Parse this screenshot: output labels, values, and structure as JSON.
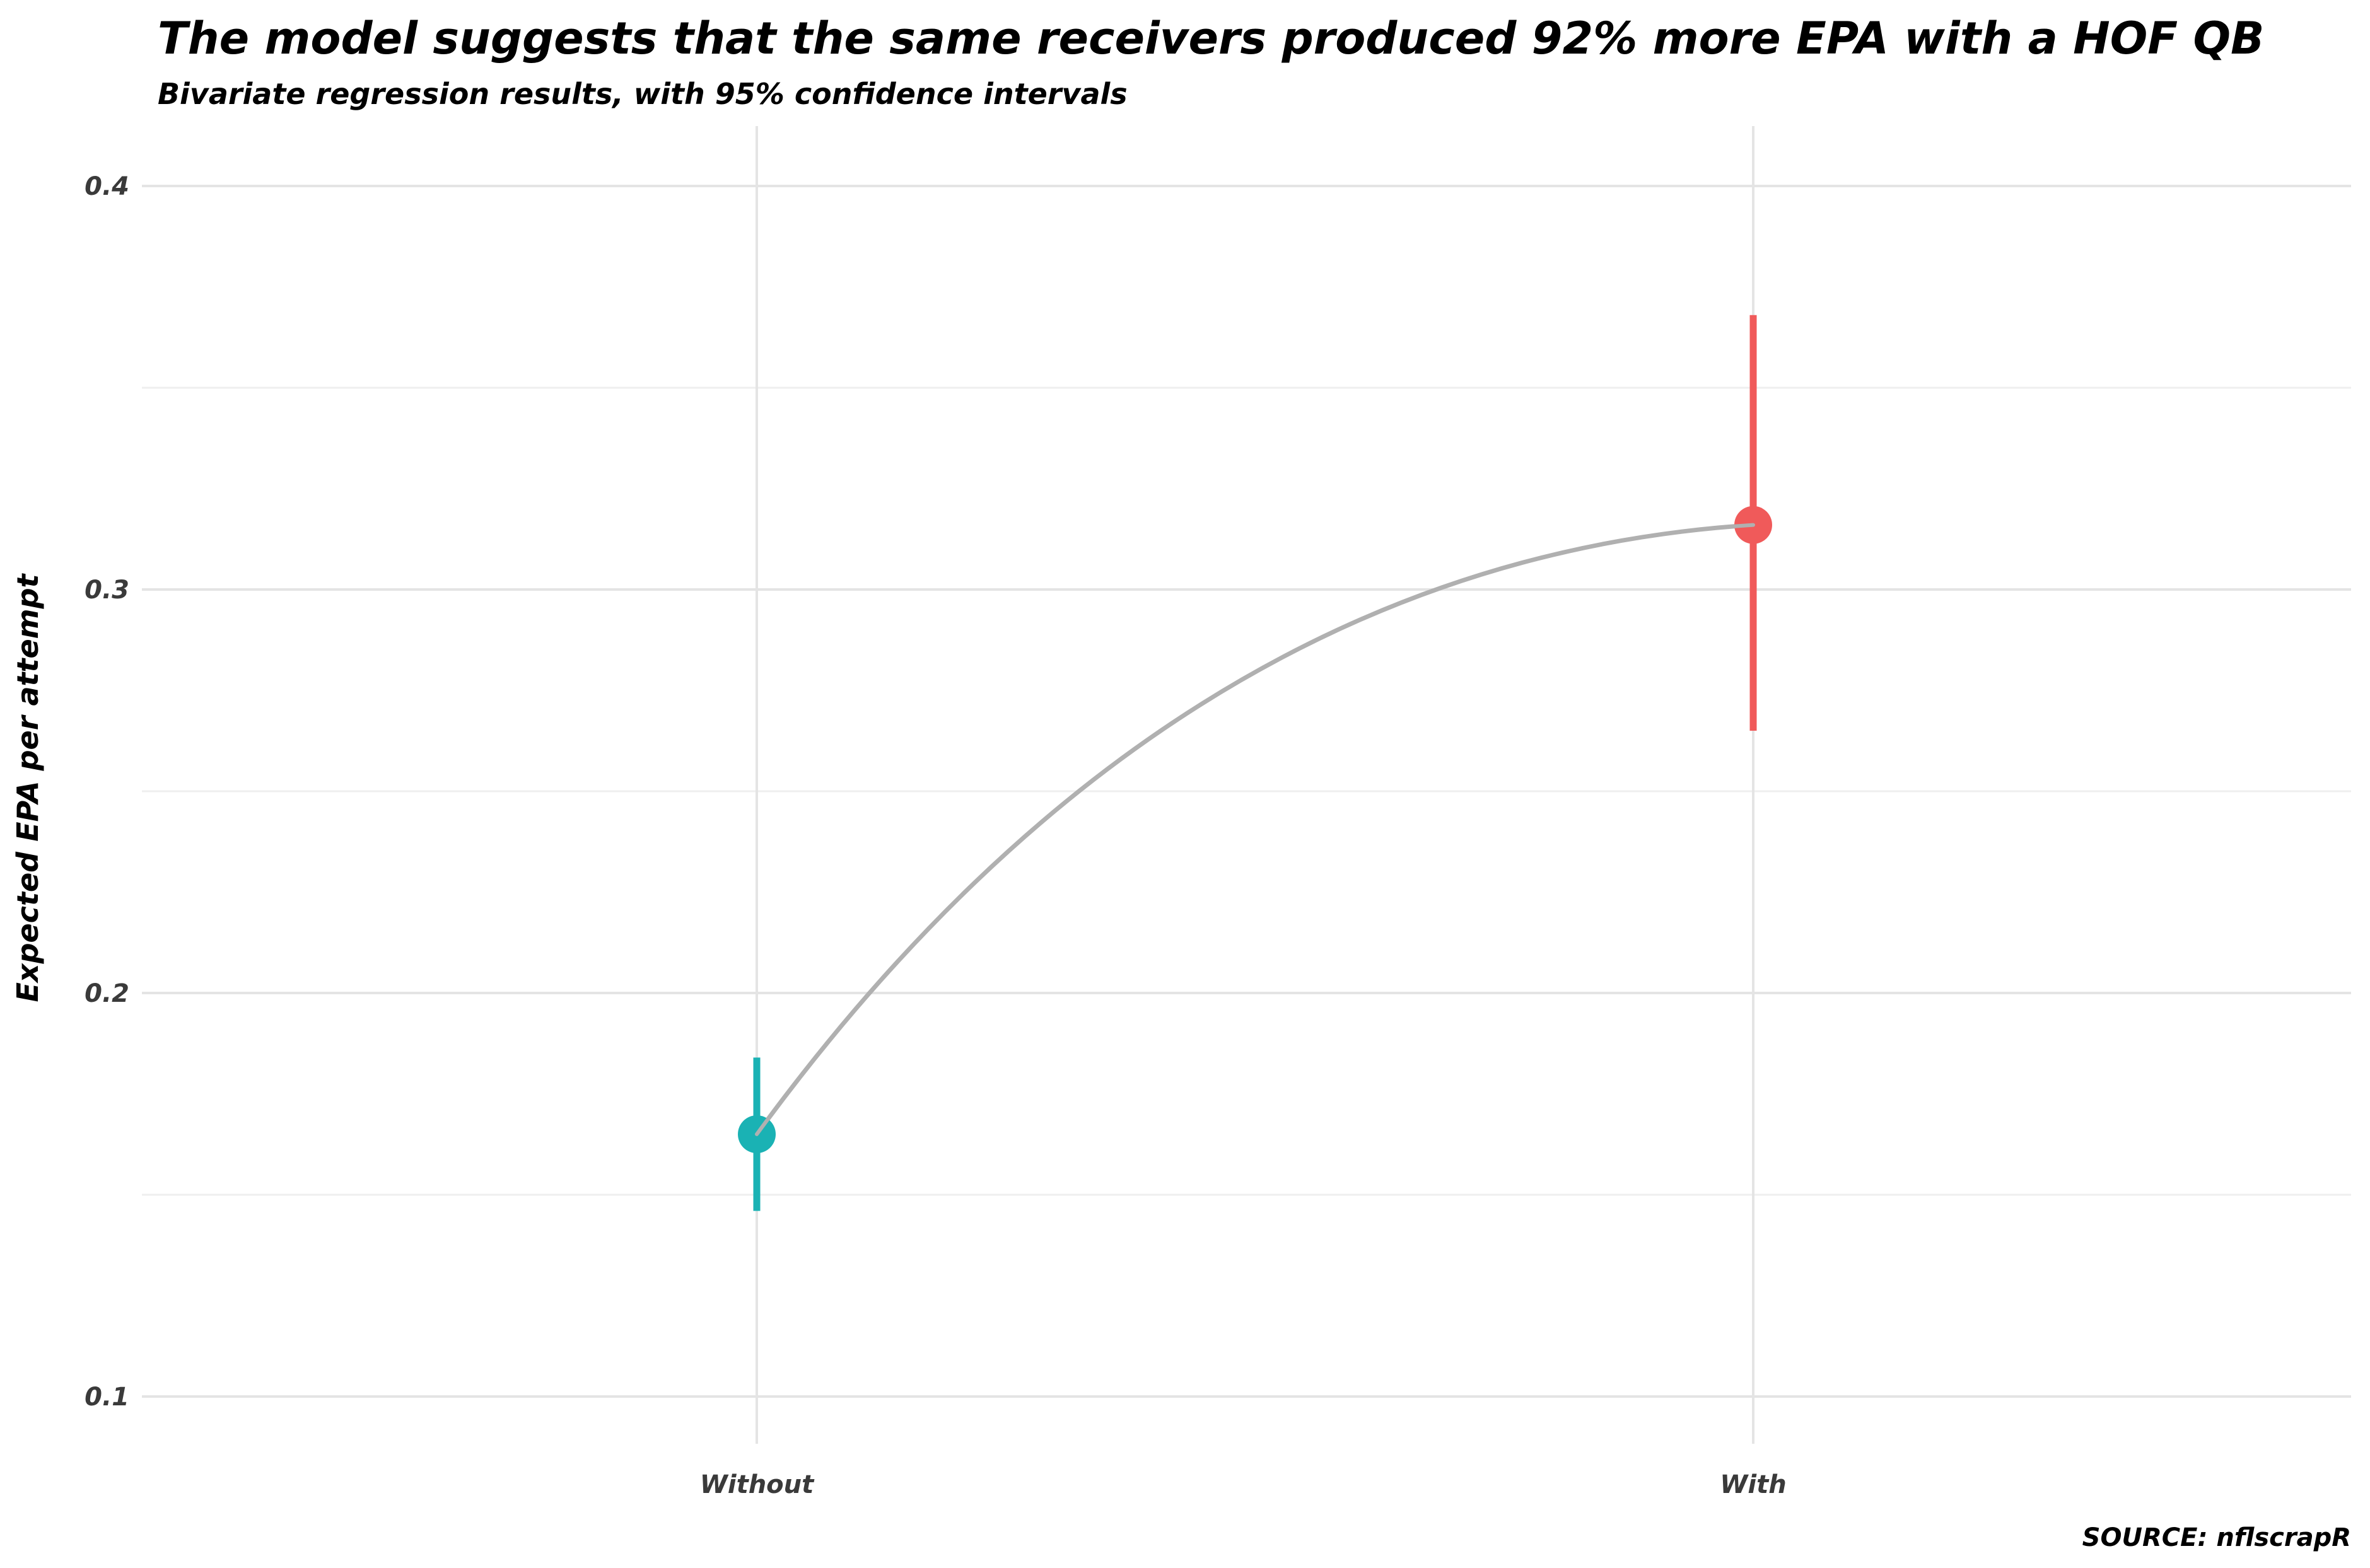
{
  "chart_data": {
    "type": "scatter",
    "title": "The model suggests that the same receivers produced 92% more EPA with a HOF QB",
    "subtitle": "Bivariate regression results, with 95% confidence intervals",
    "xlabel": "",
    "ylabel": "Expected EPA per attempt",
    "caption": "SOURCE: nflscrapR",
    "categories": [
      "Without",
      "With"
    ],
    "points": [
      {
        "category": "Without",
        "value": 0.165,
        "lower": 0.146,
        "upper": 0.184,
        "color": "#1ab2b4"
      },
      {
        "category": "With",
        "value": 0.316,
        "lower": 0.265,
        "upper": 0.368,
        "color": "#f05a5a"
      }
    ],
    "ylim": [
      0.085,
      0.415
    ],
    "yticks": [
      0.1,
      0.2,
      0.3,
      0.4
    ],
    "ytick_labels": [
      "0.1",
      "0.2",
      "0.3",
      "0.4"
    ],
    "grid": true,
    "connector_color": "#b0b0b0"
  }
}
